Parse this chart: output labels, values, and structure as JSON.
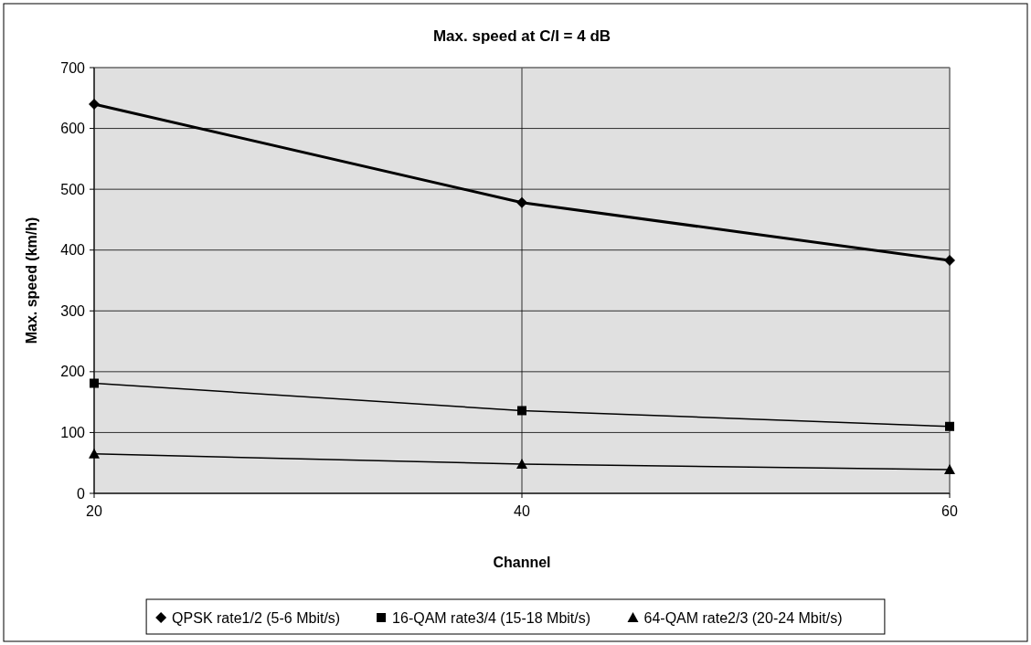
{
  "chart_data": {
    "type": "line",
    "title": "Max. speed at C/I = 4 dB",
    "xlabel": "Channel",
    "ylabel": "Max. speed (km/h)",
    "x": [
      20,
      40,
      60
    ],
    "xlim": [
      20,
      60
    ],
    "xticks": [
      20,
      40,
      60
    ],
    "ylim": [
      0,
      700
    ],
    "yticks": [
      0,
      100,
      200,
      300,
      400,
      500,
      600,
      700
    ],
    "grid": true,
    "legend": "bottom",
    "series": [
      {
        "name": "QPSK rate1/2 (5-6 Mbit/s)",
        "color": "#000000",
        "marker": "diamond",
        "values": [
          640,
          478,
          383
        ]
      },
      {
        "name": "16-QAM rate3/4 (15-18 Mbit/s)",
        "color": "#000000",
        "marker": "square",
        "values": [
          181,
          136,
          110
        ]
      },
      {
        "name": "64-QAM rate2/3 (20-24 Mbit/s)",
        "color": "#000000",
        "marker": "triangle",
        "values": [
          65,
          48,
          39
        ]
      }
    ]
  }
}
